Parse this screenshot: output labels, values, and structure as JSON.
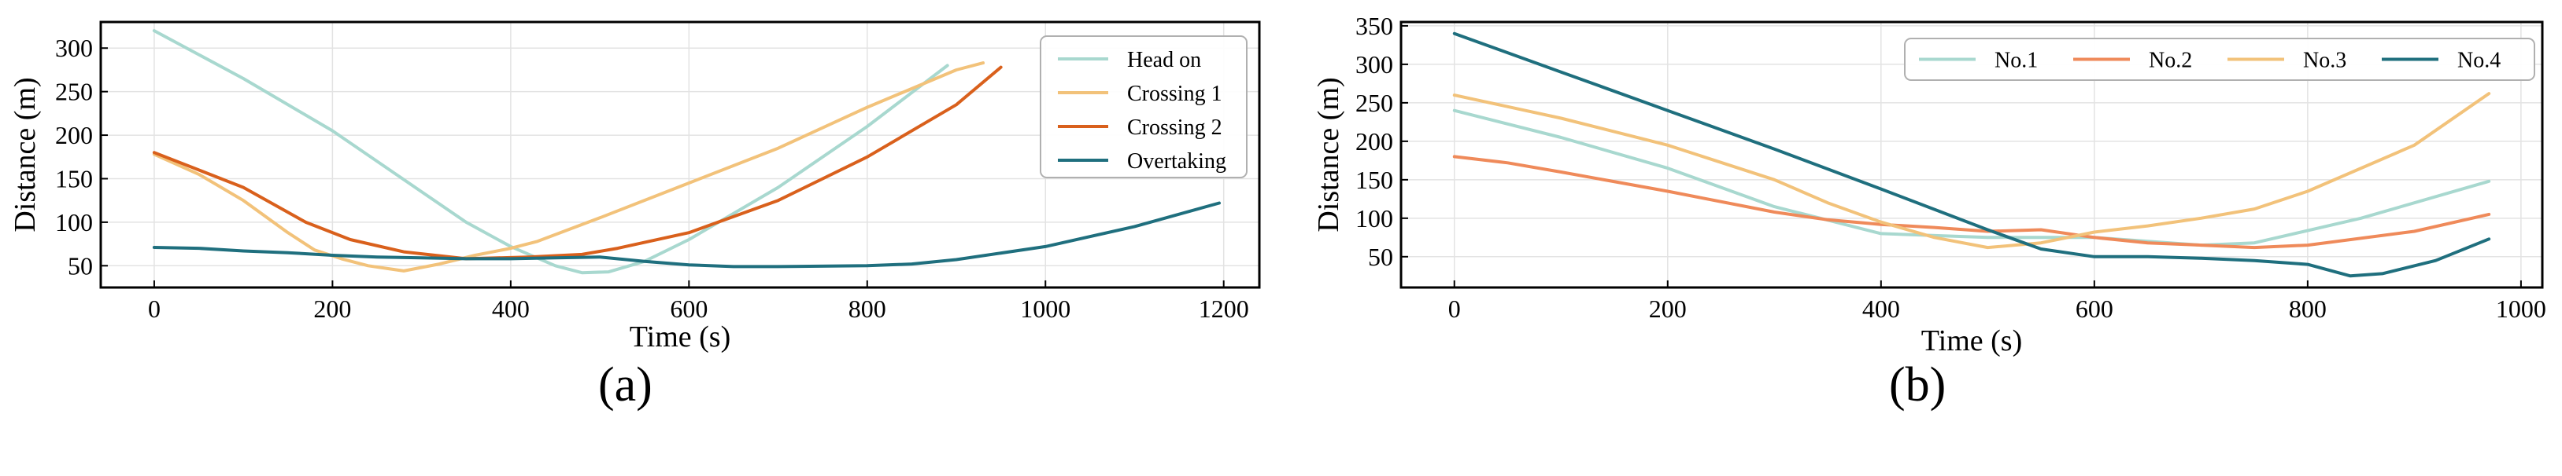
{
  "figure": {
    "panel_labels": [
      "(a)",
      "(b)"
    ]
  },
  "colors": {
    "light_teal": "#a8d8cf",
    "light_orange": "#f2c27a",
    "orange": "#d9601c",
    "dark_teal": "#1f6f7e",
    "salmon": "#ef8a5a"
  },
  "chart_data": [
    {
      "type": "line",
      "panel": "(a)",
      "title": "",
      "xlabel": "Time (s)",
      "ylabel": "Distance (m)",
      "xlim": [
        -60,
        1240
      ],
      "ylim": [
        25,
        330
      ],
      "xticks": [
        0,
        200,
        400,
        600,
        800,
        1000,
        1200
      ],
      "yticks": [
        50,
        100,
        150,
        200,
        250,
        300
      ],
      "grid": true,
      "legend_position": "top-right",
      "series": [
        {
          "name": "Head on",
          "color": "#a8d8cf",
          "points": [
            [
              0,
              320
            ],
            [
              100,
              265
            ],
            [
              200,
              205
            ],
            [
              300,
              135
            ],
            [
              350,
              100
            ],
            [
              400,
              72
            ],
            [
              450,
              50
            ],
            [
              480,
              42
            ],
            [
              510,
              43
            ],
            [
              550,
              55
            ],
            [
              600,
              80
            ],
            [
              700,
              140
            ],
            [
              800,
              210
            ],
            [
              890,
              280
            ]
          ]
        },
        {
          "name": "Crossing 1",
          "color": "#f2c27a",
          "points": [
            [
              0,
              178
            ],
            [
              50,
              155
            ],
            [
              100,
              125
            ],
            [
              150,
              88
            ],
            [
              180,
              68
            ],
            [
              210,
              58
            ],
            [
              240,
              50
            ],
            [
              280,
              44
            ],
            [
              320,
              52
            ],
            [
              360,
              62
            ],
            [
              400,
              70
            ],
            [
              430,
              78
            ],
            [
              500,
              105
            ],
            [
              600,
              145
            ],
            [
              700,
              185
            ],
            [
              800,
              232
            ],
            [
              900,
              275
            ],
            [
              930,
              283
            ]
          ]
        },
        {
          "name": "Crossing 2",
          "color": "#d9601c",
          "points": [
            [
              0,
              180
            ],
            [
              50,
              160
            ],
            [
              100,
              140
            ],
            [
              170,
              100
            ],
            [
              220,
              80
            ],
            [
              280,
              66
            ],
            [
              350,
              58
            ],
            [
              420,
              60
            ],
            [
              480,
              63
            ],
            [
              520,
              70
            ],
            [
              600,
              88
            ],
            [
              700,
              125
            ],
            [
              800,
              175
            ],
            [
              900,
              235
            ],
            [
              950,
              278
            ]
          ]
        },
        {
          "name": "Overtaking",
          "color": "#1f6f7e",
          "points": [
            [
              0,
              71
            ],
            [
              50,
              70
            ],
            [
              100,
              67
            ],
            [
              150,
              65
            ],
            [
              200,
              62
            ],
            [
              250,
              60
            ],
            [
              300,
              59
            ],
            [
              350,
              58
            ],
            [
              400,
              58
            ],
            [
              450,
              59
            ],
            [
              500,
              60
            ],
            [
              550,
              55
            ],
            [
              600,
              51
            ],
            [
              650,
              49
            ],
            [
              700,
              49
            ],
            [
              800,
              50
            ],
            [
              850,
              52
            ],
            [
              900,
              57
            ],
            [
              1000,
              72
            ],
            [
              1100,
              95
            ],
            [
              1195,
              122
            ]
          ]
        }
      ]
    },
    {
      "type": "line",
      "panel": "(b)",
      "title": "",
      "xlabel": "Time (s)",
      "ylabel": "Distance (m)",
      "xlim": [
        -50,
        1020
      ],
      "ylim": [
        10,
        355
      ],
      "xticks": [
        0,
        200,
        400,
        600,
        800,
        1000
      ],
      "yticks": [
        50,
        100,
        150,
        200,
        250,
        300,
        350
      ],
      "grid": true,
      "legend_position": "top-right",
      "series": [
        {
          "name": "No.1",
          "color": "#a8d8cf",
          "points": [
            [
              0,
              240
            ],
            [
              100,
              205
            ],
            [
              200,
              165
            ],
            [
              300,
              115
            ],
            [
              400,
              80
            ],
            [
              500,
              75
            ],
            [
              600,
              75
            ],
            [
              700,
              65
            ],
            [
              750,
              68
            ],
            [
              850,
              100
            ],
            [
              970,
              148
            ]
          ]
        },
        {
          "name": "No.2",
          "color": "#ef8a5a",
          "points": [
            [
              0,
              180
            ],
            [
              50,
              172
            ],
            [
              100,
              160
            ],
            [
              200,
              135
            ],
            [
              300,
              108
            ],
            [
              350,
              98
            ],
            [
              400,
              92
            ],
            [
              450,
              88
            ],
            [
              500,
              83
            ],
            [
              550,
              85
            ],
            [
              600,
              75
            ],
            [
              650,
              68
            ],
            [
              700,
              65
            ],
            [
              750,
              62
            ],
            [
              800,
              65
            ],
            [
              900,
              83
            ],
            [
              970,
              105
            ]
          ]
        },
        {
          "name": "No.3",
          "color": "#f2c27a",
          "points": [
            [
              0,
              260
            ],
            [
              100,
              230
            ],
            [
              200,
              195
            ],
            [
              300,
              150
            ],
            [
              350,
              120
            ],
            [
              400,
              95
            ],
            [
              450,
              75
            ],
            [
              500,
              62
            ],
            [
              550,
              68
            ],
            [
              600,
              82
            ],
            [
              650,
              90
            ],
            [
              700,
              100
            ],
            [
              750,
              112
            ],
            [
              800,
              135
            ],
            [
              900,
              195
            ],
            [
              970,
              262
            ]
          ]
        },
        {
          "name": "No.4",
          "color": "#1f6f7e",
          "points": [
            [
              0,
              340
            ],
            [
              100,
              290
            ],
            [
              200,
              240
            ],
            [
              300,
              190
            ],
            [
              400,
              138
            ],
            [
              500,
              85
            ],
            [
              550,
              60
            ],
            [
              600,
              50
            ],
            [
              650,
              50
            ],
            [
              700,
              48
            ],
            [
              750,
              45
            ],
            [
              800,
              40
            ],
            [
              840,
              25
            ],
            [
              870,
              28
            ],
            [
              920,
              45
            ],
            [
              970,
              73
            ]
          ]
        }
      ]
    }
  ]
}
